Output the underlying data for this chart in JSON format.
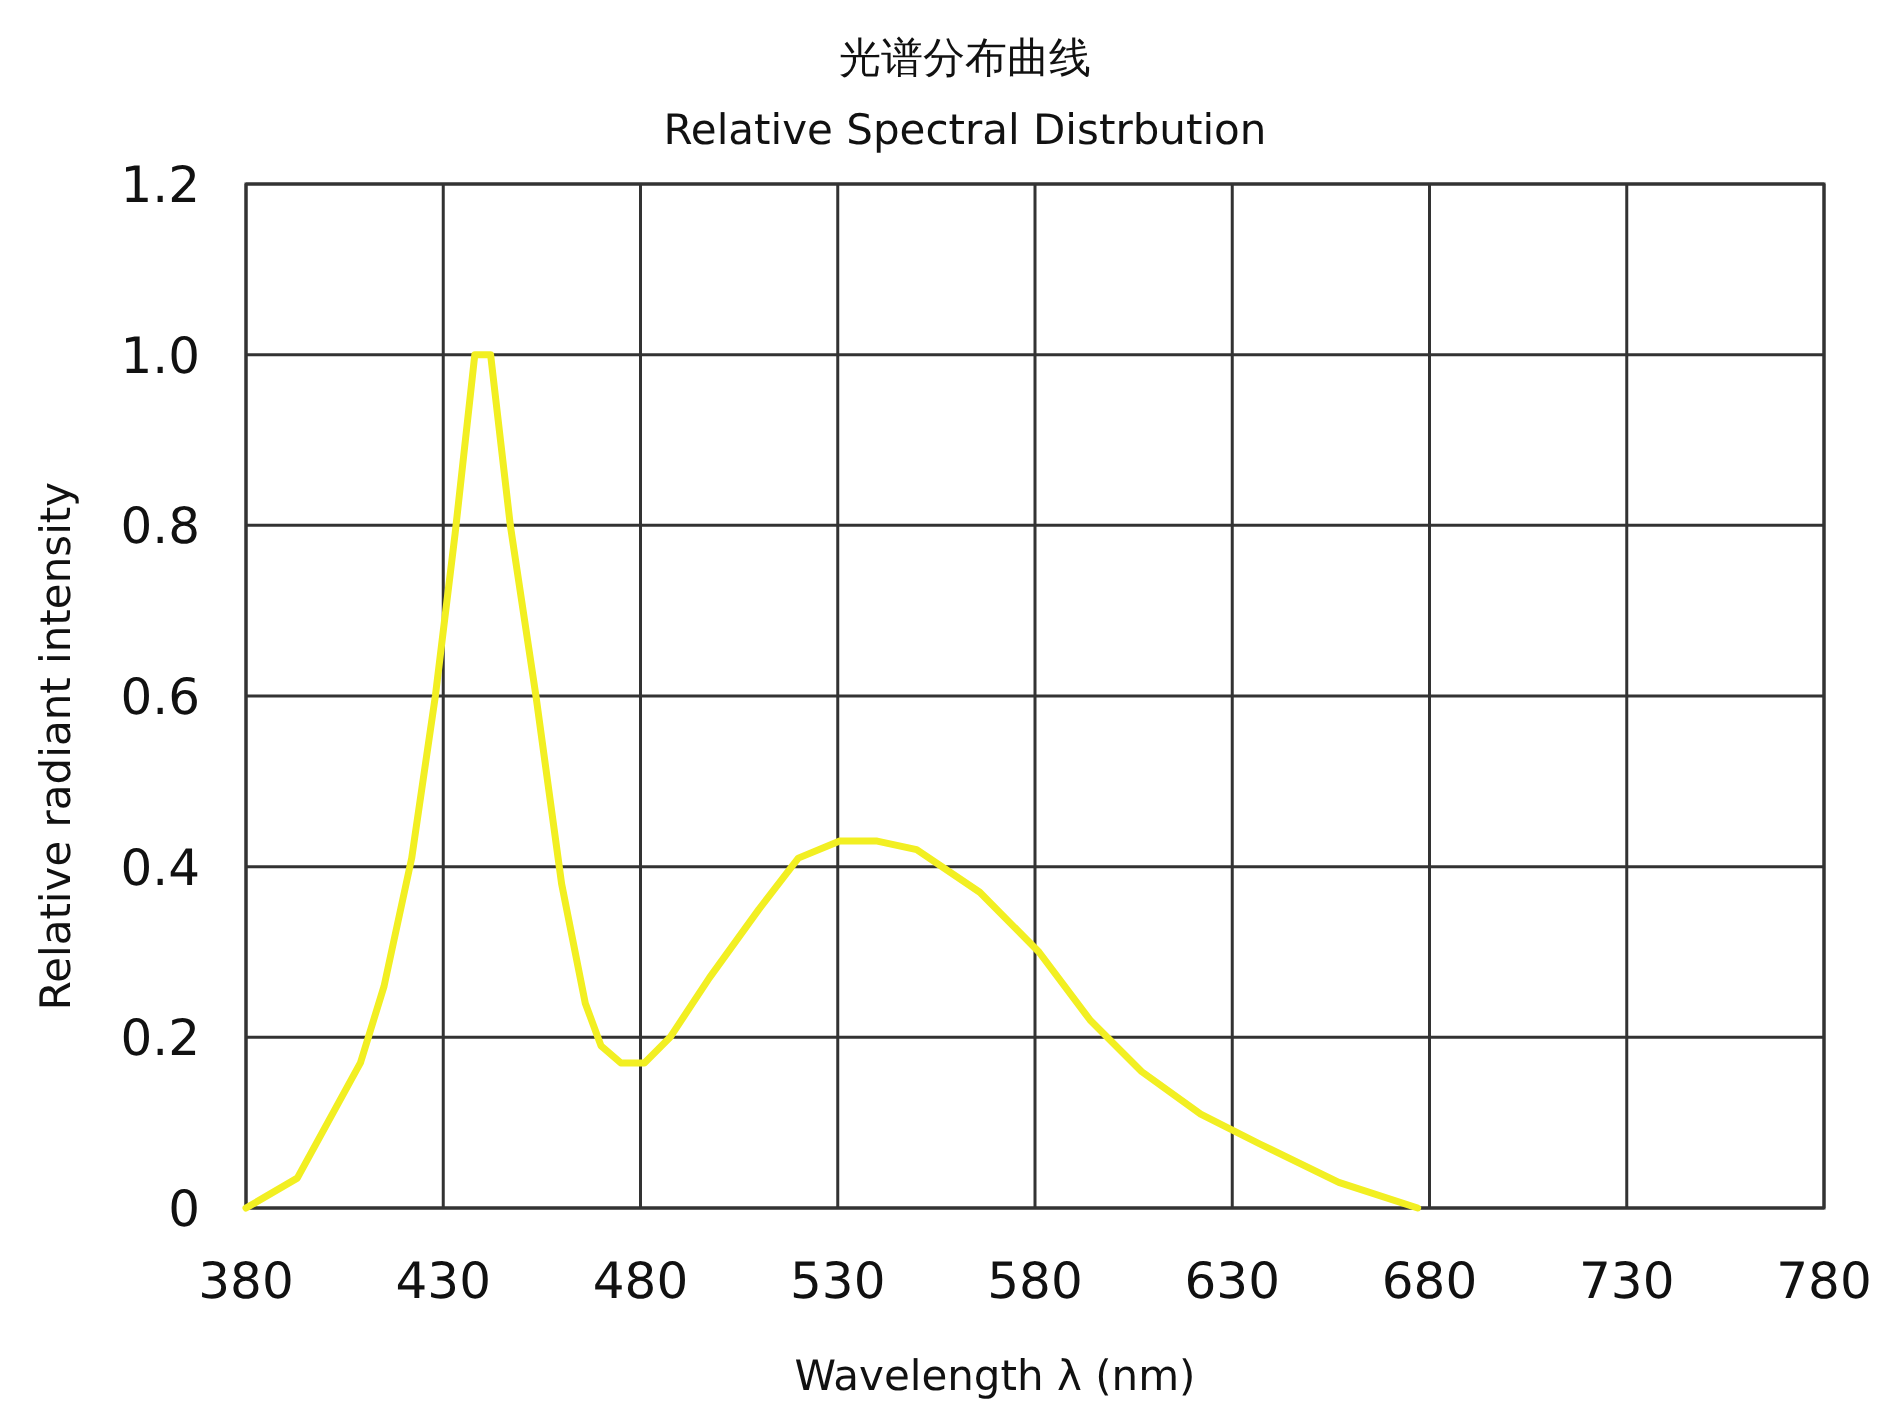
{
  "chart_data": {
    "type": "line",
    "title": "光谱分布曲线",
    "subtitle": "Relative Spectral Distrbution",
    "xlabel": "Wavelength  λ (nm)",
    "ylabel": "Relative radiant intensity",
    "x": [
      380,
      393,
      409,
      415,
      422,
      428,
      433,
      438,
      442,
      447,
      453.5,
      460,
      466,
      470,
      475,
      481,
      487.5,
      497.5,
      510,
      520,
      530.5,
      540,
      550,
      566,
      581,
      594,
      607,
      622,
      637,
      657,
      677
    ],
    "series": [
      {
        "color": "#f2ef22",
        "values": [
          0,
          0.035,
          0.17,
          0.26,
          0.41,
          0.6,
          0.79,
          1.0,
          1.0,
          0.8,
          0.6,
          0.38,
          0.24,
          0.19,
          0.17,
          0.17,
          0.2,
          0.27,
          0.35,
          0.41,
          0.43,
          0.43,
          0.42,
          0.37,
          0.3,
          0.22,
          0.16,
          0.11,
          0.075,
          0.03,
          0
        ]
      }
    ],
    "xlim": [
      380,
      780
    ],
    "xticks": [
      380,
      430,
      480,
      530,
      580,
      630,
      680,
      730,
      780
    ],
    "ylim": [
      0,
      1.2
    ],
    "yticks": [
      {
        "value": 0,
        "label": "0"
      },
      0.2,
      0.4,
      0.6,
      0.8,
      {
        "value": 1,
        "label": "1.0"
      },
      1.2
    ],
    "grid": true,
    "marker": "none",
    "line_style": "solid"
  }
}
